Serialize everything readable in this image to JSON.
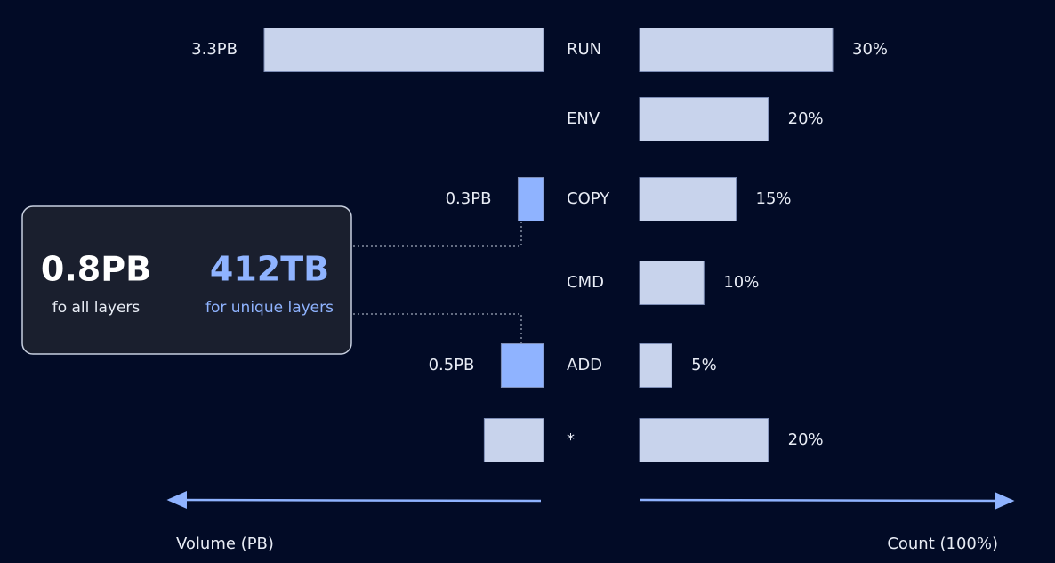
{
  "chart_data": {
    "type": "butterfly",
    "categories": [
      "RUN",
      "ENV",
      "COPY",
      "CMD",
      "ADD",
      "*"
    ],
    "series": [
      {
        "name": "Volume (PB)",
        "values": [
          3.3,
          null,
          0.3,
          null,
          0.5,
          0.7
        ],
        "value_labels": [
          "3.3PB",
          null,
          "0.3PB",
          null,
          "0.5PB",
          null
        ],
        "colors": [
          "#c8d3ec",
          null,
          "#8fb3ff",
          null,
          "#8fb3ff",
          "#c8d3ec"
        ],
        "xlim": [
          0,
          3.3
        ]
      },
      {
        "name": "Count  (100%)",
        "values": [
          30,
          20,
          15,
          10,
          5,
          20
        ],
        "value_labels": [
          "30%",
          "20%",
          "15%",
          "10%",
          "5%",
          "20%"
        ],
        "color": "#c8d3ec",
        "xlim": [
          0,
          30
        ]
      }
    ],
    "callout": {
      "all_value": "0.8PB",
      "all_label": "fo all layers",
      "unique_value": "412TB",
      "unique_label": "for unique layers"
    }
  }
}
